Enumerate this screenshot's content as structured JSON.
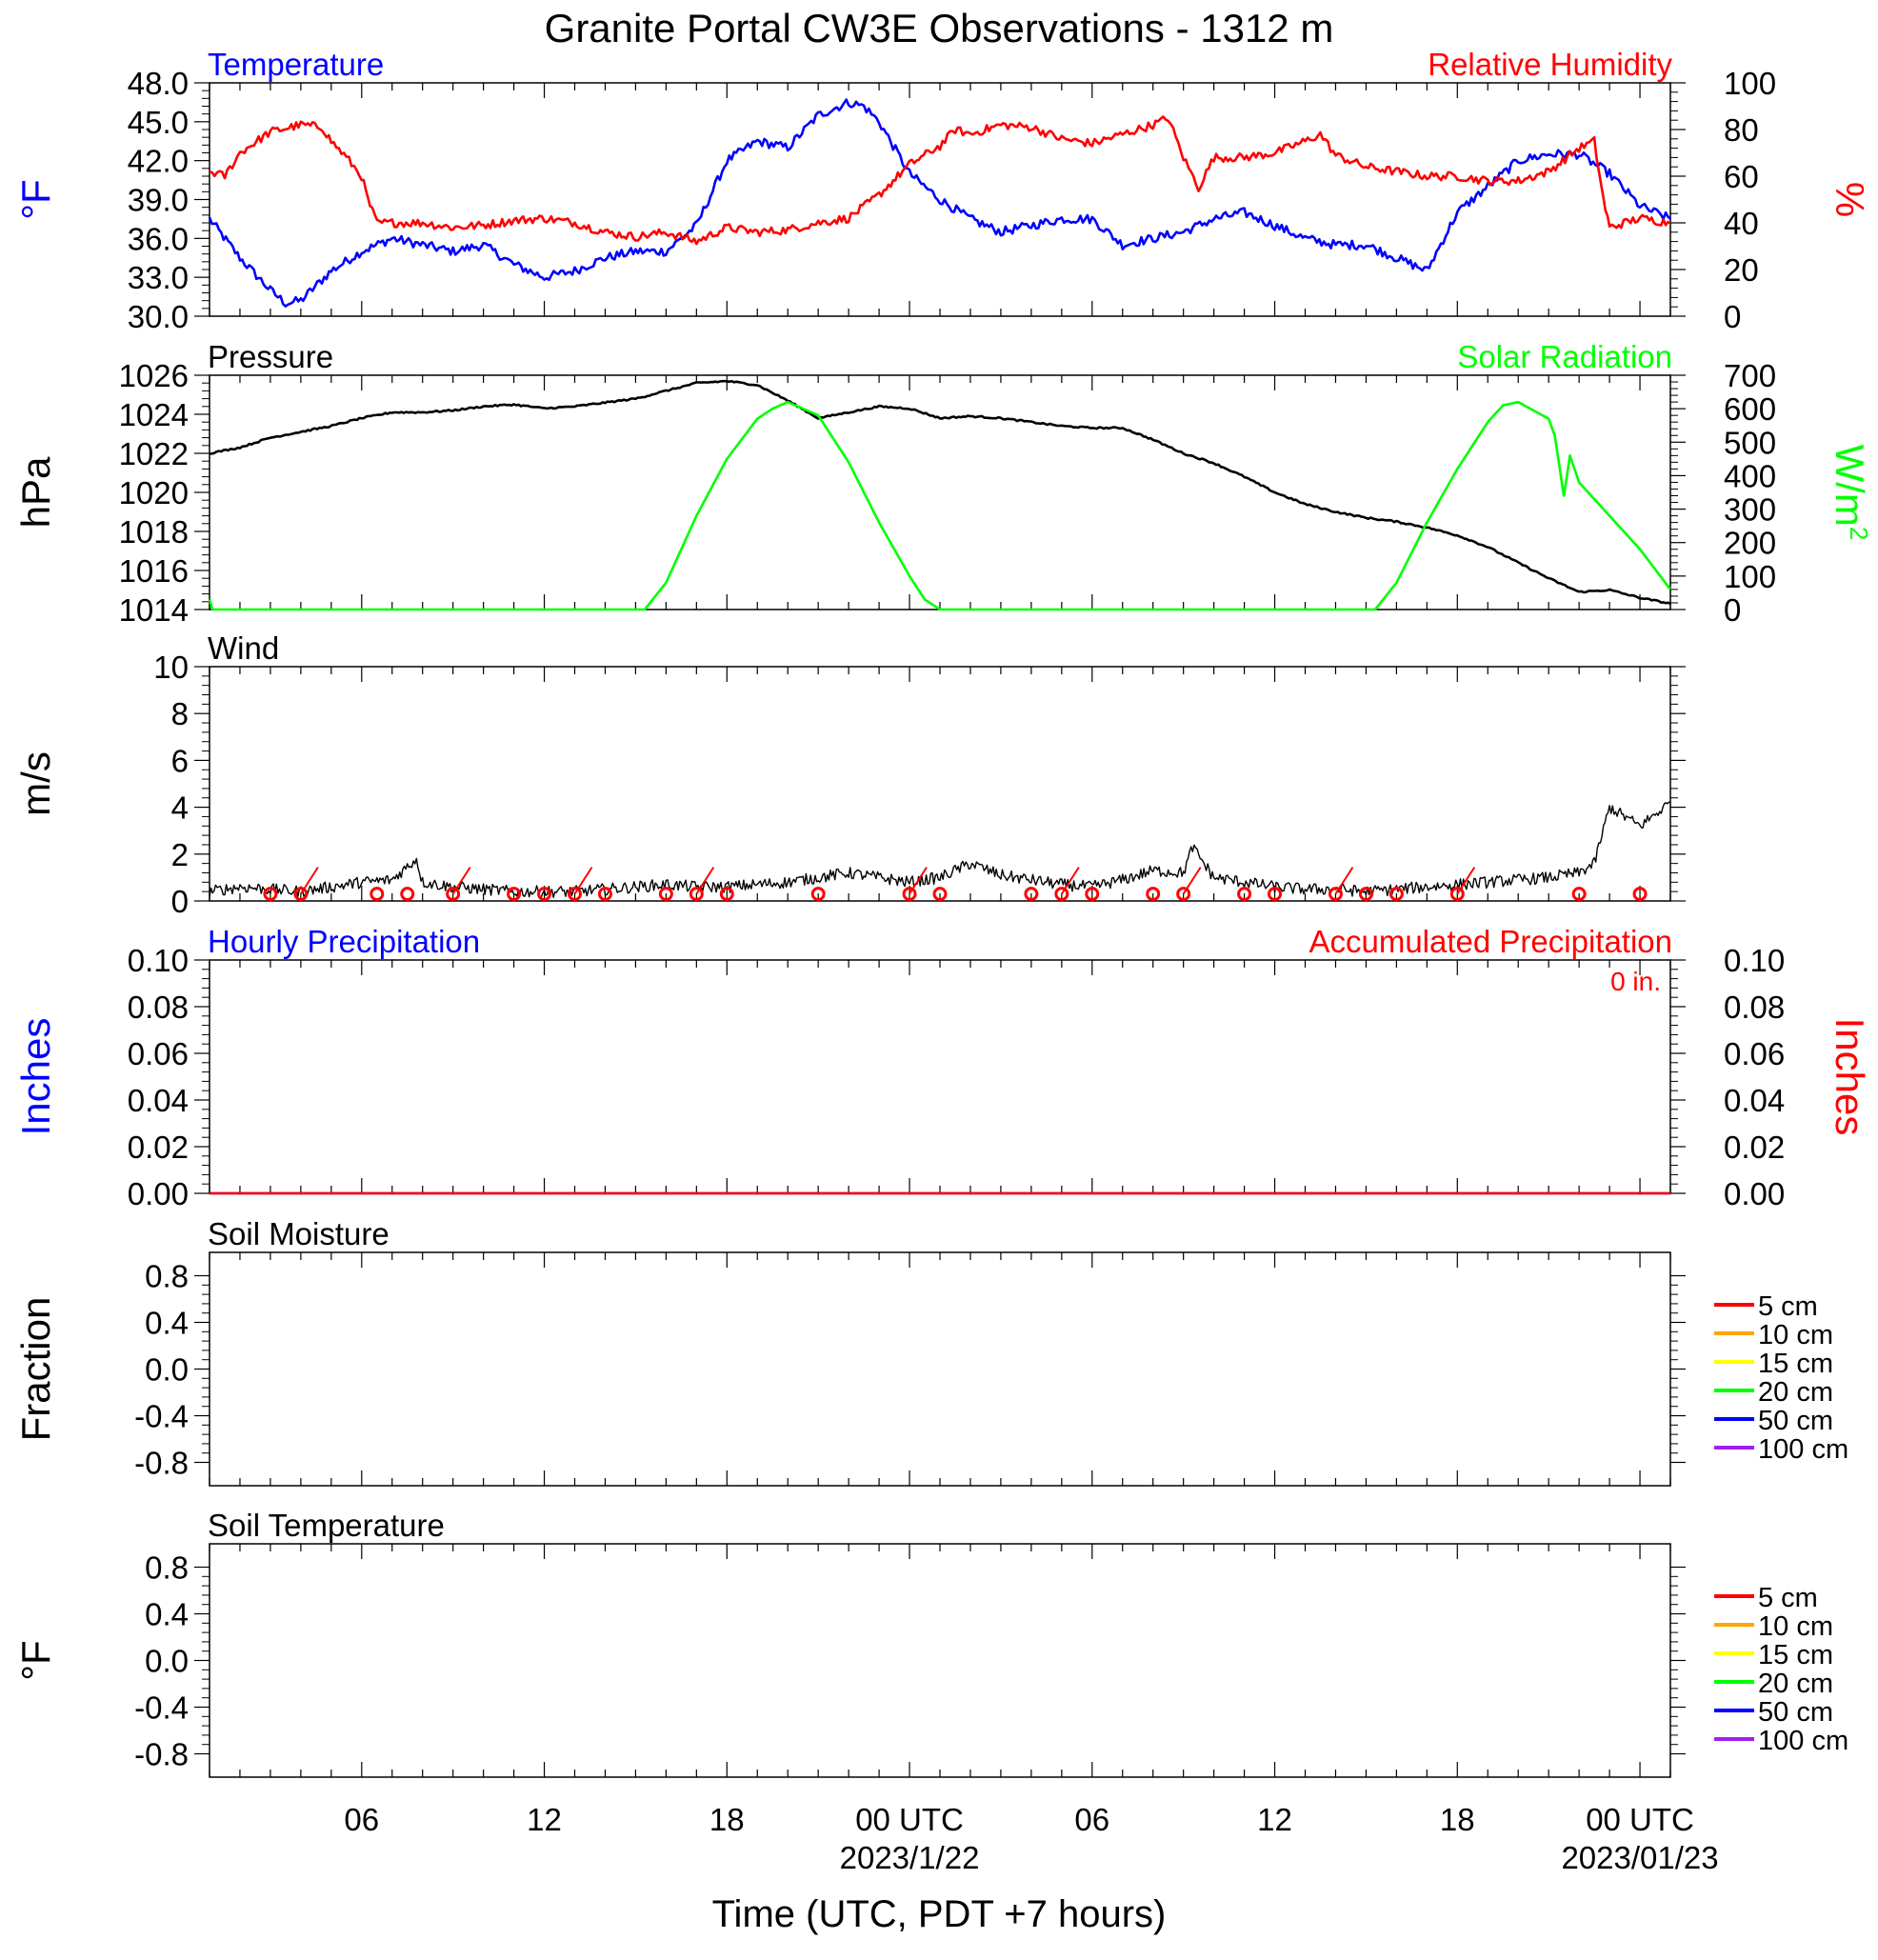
{
  "title": "Granite Portal CW3E Observations - 1312 m",
  "x_axis": {
    "label": "Time (UTC, PDT +7 hours)",
    "ticks": [
      {
        "t": 6,
        "label": "06"
      },
      {
        "t": 12,
        "label": "12"
      },
      {
        "t": 18,
        "label": "18"
      },
      {
        "t": 24,
        "label": "00 UTC",
        "sublabel": "2023/1/22"
      },
      {
        "t": 30,
        "label": "06"
      },
      {
        "t": 36,
        "label": "12"
      },
      {
        "t": 42,
        "label": "18"
      },
      {
        "t": 48,
        "label": "00 UTC",
        "sublabel": "2023/01/23"
      }
    ],
    "range_hours_utc": [
      1,
      49
    ]
  },
  "colors": {
    "temperature": "#0000ff",
    "humidity": "#ff0000",
    "pressure": "#000000",
    "solar": "#00ff00",
    "wind": "#000000",
    "wind_barb": "#ff0000",
    "hourly_precip": "#0000ff",
    "accum_precip": "#ff0000"
  },
  "chart_data": [
    {
      "id": "temp_rh",
      "type": "line",
      "left_title": "Temperature",
      "right_title": "Relative Humidity",
      "ylabel_left": "°F",
      "ylabel_right": "%",
      "ylim_left": [
        30,
        48
      ],
      "ylim_right": [
        0,
        100
      ],
      "yticks_left": [
        "30.0",
        "33.0",
        "36.0",
        "39.0",
        "42.0",
        "45.0",
        "48.0"
      ],
      "yticks_right": [
        "0",
        "20",
        "40",
        "60",
        "80",
        "100"
      ],
      "series": [
        {
          "name": "Temperature",
          "axis": "left",
          "x_hours": [
            1,
            2,
            3,
            3.5,
            4,
            5,
            6,
            7,
            8,
            9,
            10,
            11,
            12,
            13,
            14,
            15,
            16,
            17,
            18,
            19,
            20,
            21,
            22,
            22.5,
            23,
            24,
            25,
            26,
            27,
            28,
            29,
            30,
            31,
            32,
            33,
            34,
            35,
            36,
            37,
            38,
            39,
            40,
            41,
            42,
            43,
            44,
            45,
            46,
            47,
            48,
            49
          ],
          "values": [
            37.5,
            34.5,
            32,
            31,
            31.2,
            33.5,
            35,
            36,
            35.5,
            35,
            35.5,
            34,
            33,
            33.5,
            34.5,
            35,
            35,
            37,
            42,
            43.5,
            43,
            45.5,
            46.5,
            46.2,
            45,
            41,
            39,
            37.5,
            36.5,
            37,
            37.5,
            37.5,
            35.5,
            36,
            36.5,
            37.5,
            38,
            37,
            36,
            35.5,
            35.5,
            34.5,
            33.5,
            38,
            40,
            42,
            42.5,
            42.5,
            41,
            38.5,
            37.5
          ]
        },
        {
          "name": "Relative Humidity",
          "axis": "right",
          "x_hours": [
            1,
            1.5,
            2,
            3,
            4,
            4.7,
            5,
            5.5,
            6,
            6.2,
            6.5,
            7,
            8,
            9,
            10,
            11,
            12,
            13,
            14,
            15,
            16,
            17,
            18,
            19,
            20,
            21,
            22,
            23,
            24,
            25,
            25.5,
            26,
            27,
            28,
            29,
            30,
            31,
            32,
            32.5,
            33,
            33.5,
            34,
            35,
            36,
            37,
            37.5,
            38,
            39,
            40,
            41,
            42,
            43,
            44,
            45,
            46,
            46.5,
            46.8,
            47,
            48,
            49
          ],
          "values": [
            62,
            60,
            70,
            79,
            82,
            81,
            75,
            68,
            60,
            50,
            40,
            40,
            40,
            38,
            39,
            41,
            42,
            40,
            36,
            34,
            36,
            32,
            38,
            36,
            37,
            40,
            42,
            52,
            65,
            73,
            80,
            78,
            82,
            81,
            76,
            74,
            78,
            82,
            85,
            68,
            55,
            68,
            68,
            70,
            75,
            78,
            69,
            64,
            62,
            60,
            60,
            58,
            58,
            62,
            72,
            75,
            50,
            38,
            42,
            40
          ]
        }
      ]
    },
    {
      "id": "pressure_solar",
      "type": "line",
      "left_title": "Pressure",
      "right_title": "Solar Radiation",
      "ylabel_left": "hPa",
      "ylabel_right": "W/m",
      "ylabel_right_sup": "2",
      "ylim_left": [
        1014,
        1026
      ],
      "ylim_right": [
        0,
        700
      ],
      "yticks_left": [
        "1014",
        "1016",
        "1018",
        "1020",
        "1022",
        "1024",
        "1026"
      ],
      "yticks_right": [
        "0",
        "100",
        "200",
        "300",
        "400",
        "500",
        "600",
        "700"
      ],
      "series": [
        {
          "name": "Pressure",
          "axis": "left",
          "x_hours": [
            1,
            2,
            3,
            4,
            5,
            6,
            7,
            8,
            9,
            10,
            11,
            12,
            13,
            14,
            15,
            16,
            17,
            18,
            19,
            20,
            21,
            22,
            23,
            24,
            25,
            26,
            27,
            28,
            29,
            30,
            31,
            32,
            33,
            34,
            35,
            36,
            37,
            38,
            39,
            40,
            41,
            42,
            43,
            44,
            45,
            46,
            47,
            48,
            49
          ],
          "values": [
            1022,
            1022.3,
            1022.8,
            1023.1,
            1023.4,
            1023.8,
            1024.1,
            1024.1,
            1024.2,
            1024.4,
            1024.5,
            1024.3,
            1024.4,
            1024.6,
            1024.8,
            1025.2,
            1025.6,
            1025.7,
            1025.5,
            1024.7,
            1023.8,
            1024.1,
            1024.4,
            1024.3,
            1023.8,
            1023.9,
            1023.8,
            1023.6,
            1023.4,
            1023.3,
            1023.3,
            1022.7,
            1022,
            1021.5,
            1020.8,
            1020,
            1019.4,
            1019,
            1018.7,
            1018.5,
            1018.2,
            1017.8,
            1017.2,
            1016.4,
            1015.6,
            1014.9,
            1015,
            1014.6,
            1014.3
          ]
        },
        {
          "name": "Solar Radiation",
          "axis": "right",
          "x_hours": [
            1,
            1.1,
            15.3,
            16,
            17,
            18,
            19,
            19.5,
            20,
            21,
            22,
            23,
            24,
            24.5,
            25,
            39.3,
            40,
            41,
            42,
            43,
            43.5,
            44,
            45,
            45.2,
            45.5,
            45.7,
            46,
            47,
            48,
            49
          ],
          "values": [
            30,
            0,
            0,
            80,
            280,
            450,
            570,
            600,
            620,
            580,
            440,
            260,
            100,
            30,
            0,
            0,
            80,
            260,
            420,
            560,
            610,
            620,
            570,
            520,
            340,
            460,
            380,
            280,
            180,
            60
          ]
        }
      ]
    },
    {
      "id": "wind",
      "type": "line",
      "left_title": "Wind",
      "ylabel_left": "m/s",
      "ylim_left": [
        0,
        10
      ],
      "yticks_left": [
        "0",
        "2",
        "4",
        "6",
        "8",
        "10"
      ],
      "series": [
        {
          "name": "Wind",
          "axis": "left",
          "x_hours": [
            1,
            2,
            3,
            4,
            5,
            6,
            7,
            7.8,
            8,
            9,
            10,
            11,
            12,
            13,
            14,
            15,
            16,
            17,
            18,
            19,
            20,
            21,
            22,
            23,
            24,
            25,
            26,
            27,
            28,
            29,
            30,
            31,
            32,
            33,
            33.3,
            34,
            35,
            36,
            37,
            38,
            39,
            40,
            41,
            42,
            43,
            44,
            45,
            46,
            46.5,
            47,
            48,
            49
          ],
          "values": [
            0.4,
            0.6,
            0.5,
            0.4,
            0.6,
            0.8,
            0.9,
            1.8,
            0.8,
            0.6,
            0.5,
            0.4,
            0.4,
            0.4,
            0.5,
            0.6,
            0.7,
            0.6,
            0.6,
            0.7,
            0.8,
            1.0,
            1.2,
            1.0,
            0.8,
            1.0,
            1.6,
            1.1,
            0.9,
            0.7,
            0.6,
            0.9,
            1.3,
            1.2,
            2.3,
            1.0,
            0.8,
            0.6,
            0.5,
            0.5,
            0.4,
            0.5,
            0.6,
            0.7,
            0.8,
            0.9,
            1.0,
            1.2,
            1.6,
            4.0,
            3.2,
            4.2
          ]
        }
      ],
      "wind_barbs_hours": [
        3,
        4,
        6.5,
        7.5,
        9,
        11,
        12,
        13,
        14,
        16,
        17,
        18,
        21,
        24,
        25,
        28,
        29,
        30,
        32,
        33,
        35,
        36,
        38,
        39,
        40,
        42,
        46,
        48
      ]
    },
    {
      "id": "precip",
      "type": "line",
      "left_title": "Hourly Precipitation",
      "right_title": "Accumulated Precipitation",
      "right_note": "0 in.",
      "ylabel_left": "Inches",
      "ylabel_right": "Inches",
      "ylim_left": [
        0,
        0.1
      ],
      "ylim_right": [
        0,
        0.1
      ],
      "yticks_left": [
        "0.00",
        "0.02",
        "0.04",
        "0.06",
        "0.08",
        "0.10"
      ],
      "yticks_right": [
        "0.00",
        "0.02",
        "0.04",
        "0.06",
        "0.08",
        "0.10"
      ],
      "series": [
        {
          "name": "Hourly Precipitation",
          "axis": "left",
          "x_hours": [
            1,
            49
          ],
          "values": [
            0,
            0
          ]
        },
        {
          "name": "Accumulated Precipitation",
          "axis": "right",
          "x_hours": [
            1,
            49
          ],
          "values": [
            0,
            0
          ]
        }
      ]
    },
    {
      "id": "soil_moisture",
      "type": "line",
      "left_title": "Soil Moisture",
      "ylabel_left": "Fraction",
      "ylim_left": [
        -1,
        1
      ],
      "yticks_left": [
        "-0.8",
        "-0.4",
        "0.0",
        "0.4",
        "0.8"
      ],
      "legend": [
        {
          "label": "5 cm",
          "color": "#ff0000"
        },
        {
          "label": "10 cm",
          "color": "#ffa500"
        },
        {
          "label": "15 cm",
          "color": "#ffff00"
        },
        {
          "label": "20 cm",
          "color": "#00ff00"
        },
        {
          "label": "50 cm",
          "color": "#0000ff"
        },
        {
          "label": "100 cm",
          "color": "#a020f0"
        }
      ]
    },
    {
      "id": "soil_temperature",
      "type": "line",
      "left_title": "Soil Temperature",
      "ylabel_left": "°F",
      "ylim_left": [
        -1,
        1
      ],
      "yticks_left": [
        "-0.8",
        "-0.4",
        "0.0",
        "0.4",
        "0.8"
      ],
      "legend": [
        {
          "label": "5 cm",
          "color": "#ff0000"
        },
        {
          "label": "10 cm",
          "color": "#ffa500"
        },
        {
          "label": "15 cm",
          "color": "#ffff00"
        },
        {
          "label": "20 cm",
          "color": "#00ff00"
        },
        {
          "label": "50 cm",
          "color": "#0000ff"
        },
        {
          "label": "100 cm",
          "color": "#a020f0"
        }
      ]
    }
  ]
}
